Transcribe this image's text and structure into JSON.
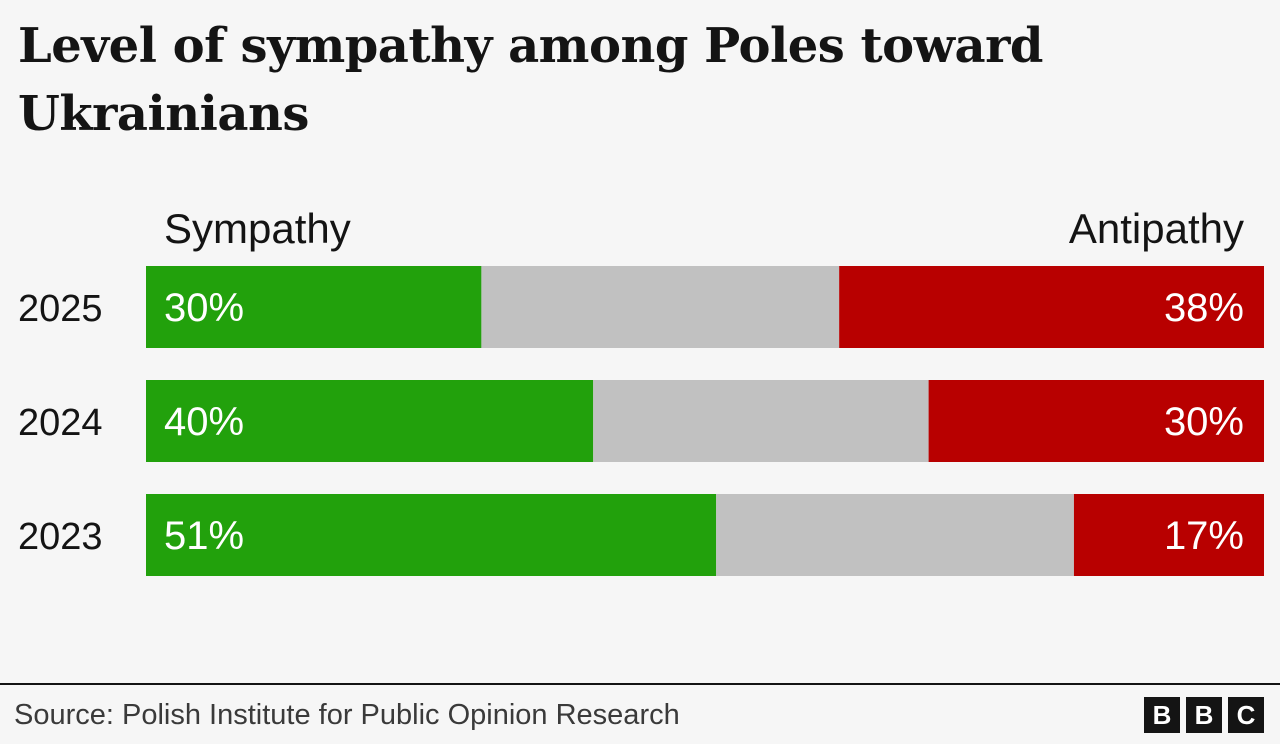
{
  "chart_data": {
    "type": "bar",
    "stacked": true,
    "orientation": "horizontal",
    "title": "Level of sympathy among Poles toward Ukrainians",
    "categories": [
      "2025",
      "2024",
      "2023"
    ],
    "series": [
      {
        "name": "Sympathy",
        "values": [
          30,
          40,
          51
        ],
        "color": "#22a10c"
      },
      {
        "name": "",
        "values": [
          32,
          30,
          32
        ],
        "color": "#c1c1c1"
      },
      {
        "name": "Antipathy",
        "values": [
          38,
          30,
          17
        ],
        "color": "#b80000"
      }
    ],
    "data_labels": {
      "sympathy": [
        "30%",
        "40%",
        "51%"
      ],
      "antipathy": [
        "38%",
        "30%",
        "17%"
      ]
    },
    "legend": {
      "left": "Sympathy",
      "right": "Antipathy",
      "placement": "top"
    },
    "xlim": [
      0,
      100
    ],
    "grid": false
  },
  "footer": {
    "source": "Source: Polish Institute for Public Opinion Research",
    "logo_letters": [
      "B",
      "B",
      "C"
    ]
  },
  "colors": {
    "background": "#f6f6f6",
    "text": "#141414",
    "label_on_bar": "#ffffff"
  }
}
